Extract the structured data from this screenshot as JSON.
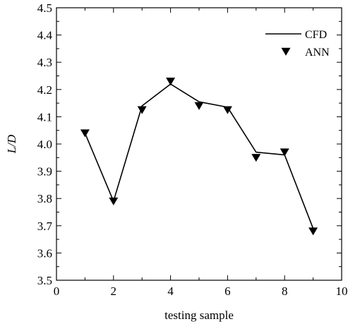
{
  "chart_data": {
    "type": "line",
    "title": "",
    "xlabel": "testing sample",
    "ylabel": "L/D",
    "xlim": [
      0,
      10
    ],
    "ylim": [
      3.5,
      4.5
    ],
    "x_ticks": [
      "0",
      "2",
      "4",
      "6",
      "8",
      "10"
    ],
    "y_ticks": [
      "3.5",
      "3.6",
      "3.7",
      "3.8",
      "3.9",
      "4.0",
      "4.1",
      "4.2",
      "4.3",
      "4.4",
      "4.5"
    ],
    "grid": false,
    "legend_position": "top-right",
    "x": [
      1,
      2,
      3,
      4,
      5,
      6,
      7,
      8,
      9
    ],
    "series": [
      {
        "name": "CFD",
        "style": "solid-line",
        "color": "#000000",
        "values": [
          4.04,
          3.79,
          4.14,
          4.22,
          4.155,
          4.135,
          3.97,
          3.96,
          3.69
        ]
      },
      {
        "name": "ANN",
        "style": "down-triangle-marker",
        "color": "#000000",
        "values": [
          4.04,
          3.79,
          4.125,
          4.23,
          4.14,
          4.125,
          3.95,
          3.97,
          3.68
        ]
      }
    ]
  }
}
